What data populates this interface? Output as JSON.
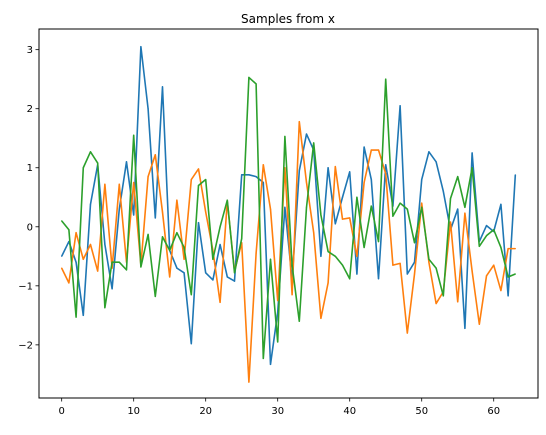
{
  "chart_data": {
    "type": "line",
    "title": "Samples from x",
    "xlabel": "",
    "ylabel": "",
    "xlim": [
      -3.15,
      66.15
    ],
    "ylim": [
      -2.9,
      3.35
    ],
    "xticks": [
      0,
      10,
      20,
      30,
      40,
      50,
      60
    ],
    "yticks": [
      -2,
      -1,
      0,
      1,
      2,
      3
    ],
    "x": [
      0,
      1,
      2,
      3,
      4,
      5,
      6,
      7,
      8,
      9,
      10,
      11,
      12,
      13,
      14,
      15,
      16,
      17,
      18,
      19,
      20,
      21,
      22,
      23,
      24,
      25,
      26,
      27,
      28,
      29,
      30,
      31,
      32,
      33,
      34,
      35,
      36,
      37,
      38,
      39,
      40,
      41,
      42,
      43,
      44,
      45,
      46,
      47,
      48,
      49,
      50,
      51,
      52,
      53,
      54,
      55,
      56,
      57,
      58,
      59,
      60,
      61,
      62,
      63
    ],
    "grid": false,
    "legend": "none",
    "series": [
      {
        "color": "#1f77b4",
        "values": [
          -0.5,
          -0.25,
          -0.6,
          -1.5,
          0.38,
          1.05,
          -0.3,
          -1.05,
          0.3,
          1.1,
          0.2,
          3.05,
          2.0,
          0.15,
          2.37,
          -0.4,
          -0.7,
          -0.78,
          -1.98,
          0.07,
          -0.78,
          -0.9,
          -0.3,
          -0.85,
          -0.92,
          0.88,
          0.88,
          0.85,
          0.75,
          -2.33,
          -1.45,
          0.33,
          -0.9,
          0.95,
          1.57,
          1.3,
          -0.5,
          1.0,
          0.05,
          0.5,
          0.93,
          -0.8,
          1.35,
          0.8,
          -0.88,
          1.05,
          0.35,
          2.05,
          -0.8,
          -0.6,
          0.8,
          1.27,
          1.1,
          0.6,
          -0.05,
          0.3,
          -1.72,
          1.25,
          -0.25,
          0.02,
          -0.08,
          0.38,
          -1.17,
          0.88
        ]
      },
      {
        "color": "#ff7f0e",
        "values": [
          -0.7,
          -0.95,
          -0.1,
          -0.55,
          -0.3,
          -0.75,
          0.72,
          -0.7,
          0.72,
          -0.6,
          0.75,
          -0.65,
          0.85,
          1.22,
          0.25,
          -0.85,
          0.45,
          -0.55,
          0.8,
          0.98,
          0.25,
          -0.4,
          -1.28,
          0.43,
          -0.75,
          -0.27,
          -2.63,
          -0.45,
          1.05,
          0.3,
          -1.25,
          1.0,
          -1.15,
          1.78,
          0.75,
          -0.1,
          -1.55,
          -0.95,
          1.02,
          0.13,
          0.15,
          -0.5,
          0.75,
          1.3,
          1.3,
          0.9,
          -0.65,
          -0.62,
          -1.8,
          -0.8,
          0.4,
          -0.6,
          -1.3,
          -1.1,
          0.08,
          -1.27,
          0.23,
          -0.75,
          -1.65,
          -0.83,
          -0.65,
          -1.08,
          -0.37,
          -0.37
        ]
      },
      {
        "color": "#2ca02c",
        "values": [
          0.1,
          -0.05,
          -1.53,
          1.0,
          1.27,
          1.08,
          -1.37,
          -0.6,
          -0.6,
          -0.73,
          1.55,
          -0.68,
          -0.13,
          -1.18,
          -0.17,
          -0.4,
          -0.1,
          -0.35,
          -1.15,
          0.7,
          0.8,
          -0.55,
          0.0,
          0.45,
          -0.78,
          -0.2,
          2.53,
          2.42,
          -2.23,
          -0.55,
          -1.95,
          1.53,
          -0.65,
          -1.6,
          0.33,
          1.42,
          0.2,
          -0.42,
          -0.5,
          -0.65,
          -0.88,
          0.5,
          -0.35,
          0.35,
          -0.25,
          2.5,
          0.18,
          0.4,
          0.3,
          -0.27,
          0.33,
          -0.55,
          -0.7,
          -1.17,
          0.48,
          0.85,
          0.33,
          1.0,
          -0.33,
          -0.15,
          -0.05,
          -0.35,
          -0.85,
          -0.8
        ]
      }
    ]
  }
}
